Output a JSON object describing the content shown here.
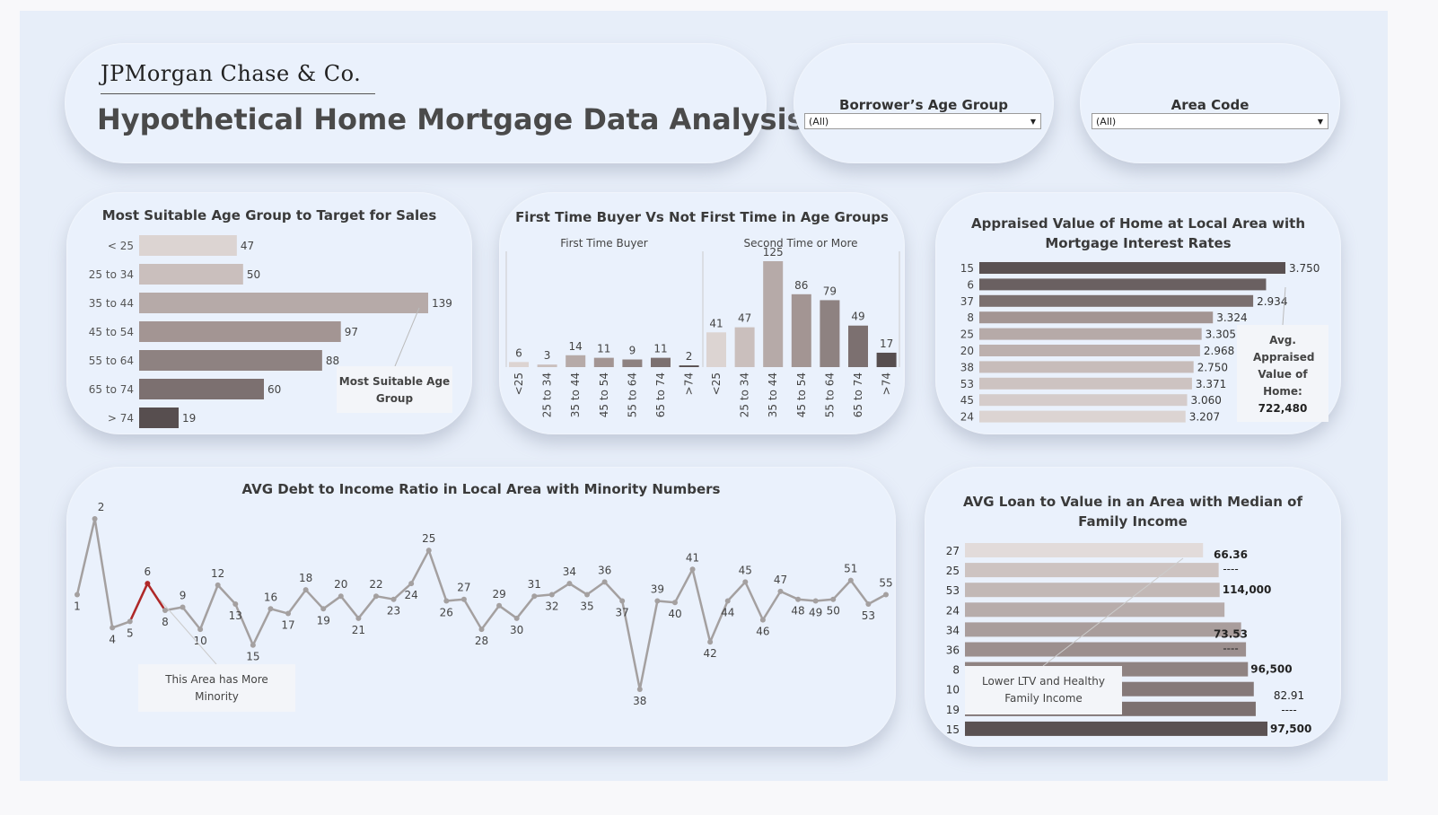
{
  "header": {
    "logo_text": "JPMorgan Chase & Co.",
    "title": "Hypothetical Home Mortgage Data Analysis"
  },
  "filters": {
    "age_group": {
      "label": "Borrower’s Age Group",
      "value": "(All)"
    },
    "area_code": {
      "label": "Area Code",
      "value": "(All)"
    }
  },
  "panels": {
    "age_target": {
      "title": "Most Suitable Age Group to Target for Sales",
      "annotation": "Most Suitable Age Group"
    },
    "first_time": {
      "title": "First Time Buyer Vs Not First Time in Age Groups"
    },
    "appraised": {
      "title": "Appraised Value of Home at Local Area with Mortgage Interest Rates",
      "tooltip_label": "Avg. Appraised Value of Home:",
      "tooltip_value": "722,480"
    },
    "dti": {
      "title": "AVG Debt to Income Ratio in Local Area with Minority Numbers",
      "annotation": "This Area has More Minority"
    },
    "ltv": {
      "title": "AVG Loan to Value in an Area with Median of Family Income",
      "annotation": "Lower LTV and Healthy Family Income"
    }
  },
  "colors": {
    "dark": "#5a5152",
    "highlight": "#b02828",
    "line": "#a4a0a0",
    "panel_bg": "#eaf1fc"
  },
  "chart_data": [
    {
      "id": "age_target",
      "type": "bar",
      "orientation": "horizontal",
      "categories": [
        "< 25",
        "25 to 34",
        "35 to 44",
        "45 to 54",
        "55 to 64",
        "65 to 74",
        "> 74"
      ],
      "values": [
        47,
        50,
        139,
        97,
        88,
        60,
        19
      ],
      "colors": [
        "#dcd4d2",
        "#cabfbd",
        "#b6aaa8",
        "#a39593",
        "#8e8281",
        "#7c7070",
        "#574e4f"
      ]
    },
    {
      "id": "first_time",
      "type": "bar",
      "categories": [
        "<25",
        "25 to 34",
        "35 to 44",
        "45 to 54",
        "55 to 64",
        "65 to 74",
        ">74"
      ],
      "series": [
        {
          "name": "First Time Buyer",
          "values": [
            6,
            3,
            14,
            11,
            9,
            11,
            2
          ]
        },
        {
          "name": "Second Time or More",
          "values": [
            41,
            47,
            125,
            86,
            79,
            49,
            17
          ]
        }
      ],
      "colors": [
        "#dcd4d2",
        "#cabfbd",
        "#b6aaa8",
        "#a39593",
        "#8e8281",
        "#7c7070",
        "#574e4f"
      ]
    },
    {
      "id": "appraised",
      "type": "bar",
      "orientation": "horizontal",
      "categories": [
        "15",
        "6",
        "37",
        "8",
        "25",
        "20",
        "38",
        "53",
        "45",
        "24"
      ],
      "values": [
        950000,
        890000,
        850000,
        725000,
        690000,
        685000,
        665000,
        660000,
        645000,
        640000
      ],
      "labels": [
        "3.750",
        "",
        "2.934",
        "3.324",
        "3.305",
        "2.968",
        "2.750",
        "3.371",
        "3.060",
        "3.207"
      ],
      "colors": [
        "#5a5152",
        "#6a6061",
        "#7a6f6f",
        "#a39593",
        "#b6aaa8",
        "#bcb0ae",
        "#c7bcba",
        "#cdc3c1",
        "#d5cccb",
        "#dcd4d2"
      ]
    },
    {
      "id": "dti",
      "type": "line",
      "x": [
        1,
        2,
        4,
        5,
        6,
        8,
        9,
        10,
        12,
        13,
        15,
        16,
        17,
        18,
        19,
        20,
        21,
        22,
        23,
        24,
        25,
        26,
        27,
        28,
        29,
        30,
        31,
        32,
        34,
        35,
        36,
        37,
        38,
        39,
        40,
        41,
        42,
        44,
        45,
        46,
        47,
        48,
        49,
        50,
        51,
        53,
        55
      ],
      "y": [
        36.6,
        41.4,
        34.5,
        34.9,
        37.3,
        35.6,
        35.8,
        34.4,
        37.2,
        36.0,
        33.4,
        35.7,
        35.4,
        36.9,
        35.7,
        36.5,
        35.1,
        36.5,
        36.3,
        37.3,
        39.4,
        36.2,
        36.3,
        34.4,
        35.9,
        35.1,
        36.5,
        36.6,
        37.3,
        36.6,
        37.4,
        36.2,
        30.6,
        36.2,
        36.1,
        38.2,
        33.6,
        36.2,
        37.4,
        35.0,
        36.8,
        36.3,
        36.2,
        36.3,
        37.5,
        36.0,
        36.6
      ],
      "highlight_x": [
        5,
        6,
        8
      ]
    },
    {
      "id": "ltv",
      "type": "bar",
      "orientation": "horizontal",
      "categories": [
        "27",
        "25",
        "53",
        "24",
        "34",
        "36",
        "8",
        "10",
        "19",
        "15"
      ],
      "values": [
        64.4,
        66.0,
        66.1,
        66.6,
        68.3,
        68.8,
        69.0,
        69.6,
        69.8,
        71.0
      ],
      "labels": [
        "66.36",
        "----",
        "114,000",
        "",
        "73.53",
        "----",
        "96,500",
        "",
        "82.91\n----",
        "97,500"
      ],
      "colors": [
        "#e2dbda",
        "#cdc3c1",
        "#c2b8b6",
        "#b7acab",
        "#a99d9c",
        "#9c8f8e",
        "#8f8382",
        "#857979",
        "#7c7070",
        "#5a5152"
      ]
    }
  ]
}
